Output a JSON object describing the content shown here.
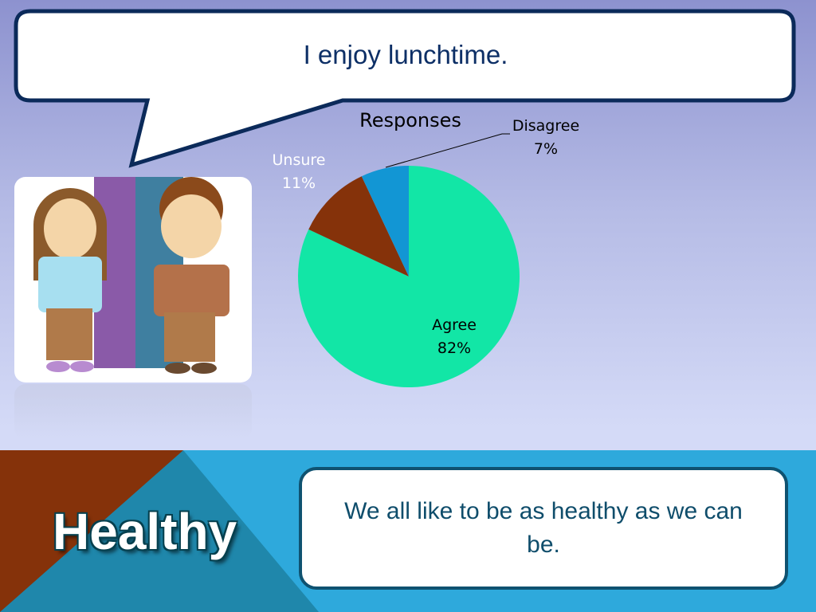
{
  "slide": {
    "question": "I enjoy lunchtime.",
    "category": "Healthy",
    "message": "We all like to be as healthy as we can be."
  },
  "colors": {
    "agree": "#12e6a6",
    "unsure": "#85320a",
    "disagree": "#1296d4",
    "bubble_border": "#0b2a5a"
  },
  "chart_data": {
    "type": "pie",
    "title": "Responses",
    "categories": [
      "Agree",
      "Unsure",
      "Disagree"
    ],
    "values": [
      82,
      11,
      7
    ],
    "labels": [
      {
        "name": "Agree",
        "value": "82%"
      },
      {
        "name": "Unsure",
        "value": "11%"
      },
      {
        "name": "Disagree",
        "value": "7%"
      }
    ],
    "start": "12 o'clock, clockwise",
    "legend": "none"
  }
}
